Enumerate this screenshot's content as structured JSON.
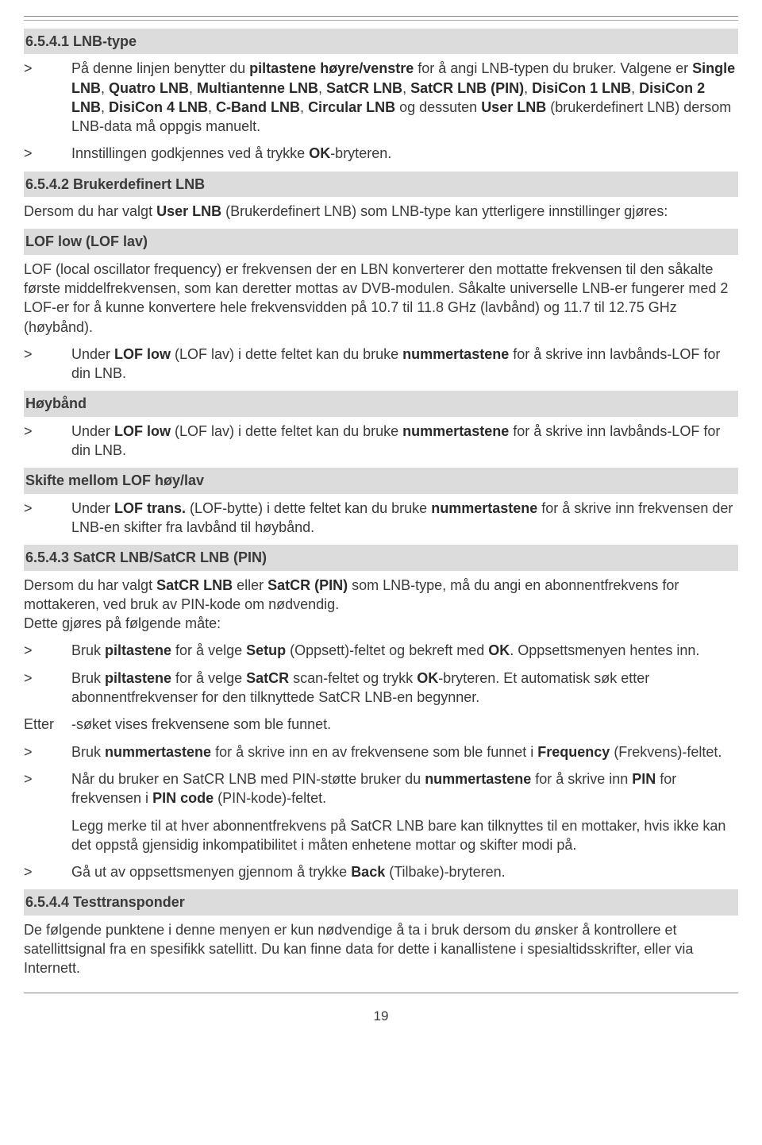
{
  "section1": {
    "heading": "6.5.4.1 LNB-type",
    "items": [
      {
        "marker": ">",
        "html": "På denne linjen benytter du <b>piltastene høyre/venstre</b> for å angi LNB-typen du bruker. Valgene er <b>Single LNB</b>, <b>Quatro LNB</b>, <b>Multiantenne LNB</b>, <b>SatCR LNB</b>, <b>SatCR LNB (PIN)</b>, <b>DisiCon 1 LNB</b>, <b>DisiCon 2 LNB</b>, <b>DisiCon 4 LNB</b>, <b>C-Band LNB</b>, <b>Circular LNB</b> og dessuten <b>User LNB</b> (brukerdefinert LNB) dersom LNB-data må oppgis manuelt."
      },
      {
        "marker": ">",
        "html": "Innstillingen godkjennes ved å trykke <b>OK</b>-bryteren."
      }
    ]
  },
  "section2": {
    "heading": "6.5.4.2 Brukerdefinert LNB",
    "intro": "Dersom du har valgt <b>User LNB</b> (Brukerdefinert LNB) som LNB-type kan ytterligere innstillinger gjøres:",
    "sub1": "LOF low (LOF lav)",
    "sub1_para": "LOF (local oscillator frequency) er frekvensen der en LBN konverterer den mottatte frekvensen til den såkalte første middelfrekvensen, som kan deretter mottas av DVB-modulen. Såkalte universelle LNB-er fungerer med 2 LOF-er for å kunne konvertere hele frekvensvidden på 10.7 til 11.8 GHz (lavbånd) og 11.7 til 12.75 GHz (høybånd).",
    "sub1_item": {
      "marker": ">",
      "html": "Under <b>LOF low</b> (LOF lav) i dette feltet kan du bruke <b>nummertastene</b> for å skrive inn lavbånds-LOF for din LNB."
    },
    "sub2": "Høybånd",
    "sub2_item": {
      "marker": ">",
      "html": "Under <b>LOF low</b> (LOF lav) i dette feltet kan du bruke <b>nummertastene</b> for å skrive inn lavbånds-LOF for din LNB."
    },
    "sub3": "Skifte mellom LOF høy/lav",
    "sub3_item": {
      "marker": ">",
      "html": "Under <b>LOF trans.</b> (LOF-bytte) i dette feltet kan du bruke <b>nummertastene</b> for å skrive inn frekvensen der LNB-en skifter fra lavbånd til høybånd."
    }
  },
  "section3": {
    "heading": "6.5.4.3 SatCR LNB/SatCR LNB (PIN)",
    "intro": "Dersom du har valgt <b>SatCR LNB</b> eller <b>SatCR (PIN)</b> som LNB-type, må du angi en abonnentfrekvens for mottakeren, ved bruk av PIN-kode om nødvendig.<br>Dette gjøres på følgende måte:",
    "items": [
      {
        "marker": ">",
        "html": "Bruk <b>piltastene</b> for å velge <b>Setup</b> (Oppsett)-feltet og bekreft med <b>OK</b>. Oppsettsmenyen hentes inn."
      },
      {
        "marker": ">",
        "html": "Bruk <b>piltastene</b> for å velge <b>SatCR</b> scan-feltet og trykk <b>OK</b>-bryteren. Et automatisk søk etter abonnentfrekvenser for den tilknyttede SatCR LNB-en begynner."
      },
      {
        "marker": "Etter",
        "html": "-søket vises frekvensene som ble funnet."
      },
      {
        "marker": ">",
        "html": "Bruk <b>nummertastene</b> for å skrive inn en av frekvensene som ble funnet i <b>Frequency</b> (Frekvens)-feltet."
      },
      {
        "marker": ">",
        "html": "Når du bruker en SatCR LNB med PIN-støtte bruker du <b>nummertastene</b> for å skrive inn <b>PIN</b> for frekvensen i <b>PIN code</b> (PIN-kode)-feltet."
      },
      {
        "marker": "",
        "html": "Legg merke til at hver abonnentfrekvens på SatCR LNB bare kan tilknyttes til en mottaker, hvis ikke kan det oppstå gjensidig inkompatibilitet i måten enhetene mottar og skifter modi på."
      },
      {
        "marker": ">",
        "html": "Gå ut av oppsettsmenyen gjennom å trykke <b>Back</b> (Tilbake)-bryteren."
      }
    ]
  },
  "section4": {
    "heading": "6.5.4.4 Testtransponder",
    "para": "De følgende punktene i denne menyen er kun nødvendige å ta i bruk dersom du ønsker å kontrollere et satellittsignal fra en spesifikk satellitt. Du kan finne data for dette i kanallistene i spesialtidsskrifter, eller via Internett."
  },
  "page_number": "19"
}
